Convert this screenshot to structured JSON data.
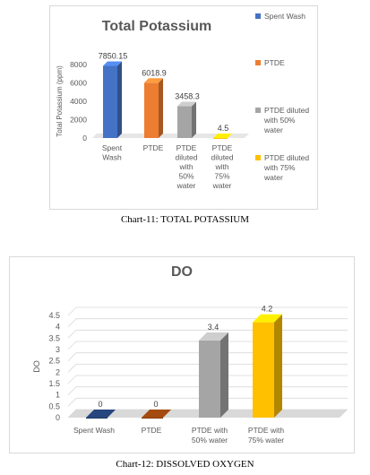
{
  "chart_data": [
    {
      "type": "bar",
      "title": "Total Potassium",
      "xlabel": "",
      "ylabel": "Total Potassium (ppm)",
      "ylim": [
        0,
        8000
      ],
      "yticks": [
        "0",
        "2000",
        "4000",
        "6000",
        "8000"
      ],
      "categories": [
        "Spent Wash",
        "PTDE",
        "PTDE diluted with 50% water",
        "PTDE diluted with 75% water"
      ],
      "values": [
        7850.15,
        6018.9,
        3458.3,
        4.5
      ],
      "data_labels": [
        "7850.15",
        "6018.9",
        "3458.3",
        "4.5"
      ],
      "colors": [
        "#4472C4",
        "#ED7D31",
        "#A5A5A5",
        "#FFC000"
      ],
      "legend": [
        "Spent Wash",
        "PTDE",
        "PTDE diluted with 50% water",
        "PTDE diluted with 75% water"
      ],
      "legend_position": "right",
      "grid": false
    },
    {
      "type": "bar",
      "title": "DO",
      "xlabel": "",
      "ylabel": "DO",
      "ylim": [
        0,
        4.5
      ],
      "yticks": [
        "0",
        "0.5",
        "1",
        "1.5",
        "2",
        "2.5",
        "3",
        "3.5",
        "4",
        "4.5"
      ],
      "categories": [
        "Spent Wash",
        "PTDE",
        "PTDE with 50% water",
        "PTDE with 75% water"
      ],
      "values": [
        0,
        0,
        3.4,
        4.2
      ],
      "data_labels": [
        "0",
        "0",
        "3.4",
        "4.2"
      ],
      "colors": [
        "#1F3864",
        "#843C0C",
        "#A5A5A5",
        "#FFC000"
      ],
      "legend_position": "none",
      "grid": true
    }
  ],
  "captions": {
    "chart1": "Chart-11: TOTAL POTASSIUM",
    "chart2": "Chart-12: DISSOLVED OXYGEN"
  }
}
